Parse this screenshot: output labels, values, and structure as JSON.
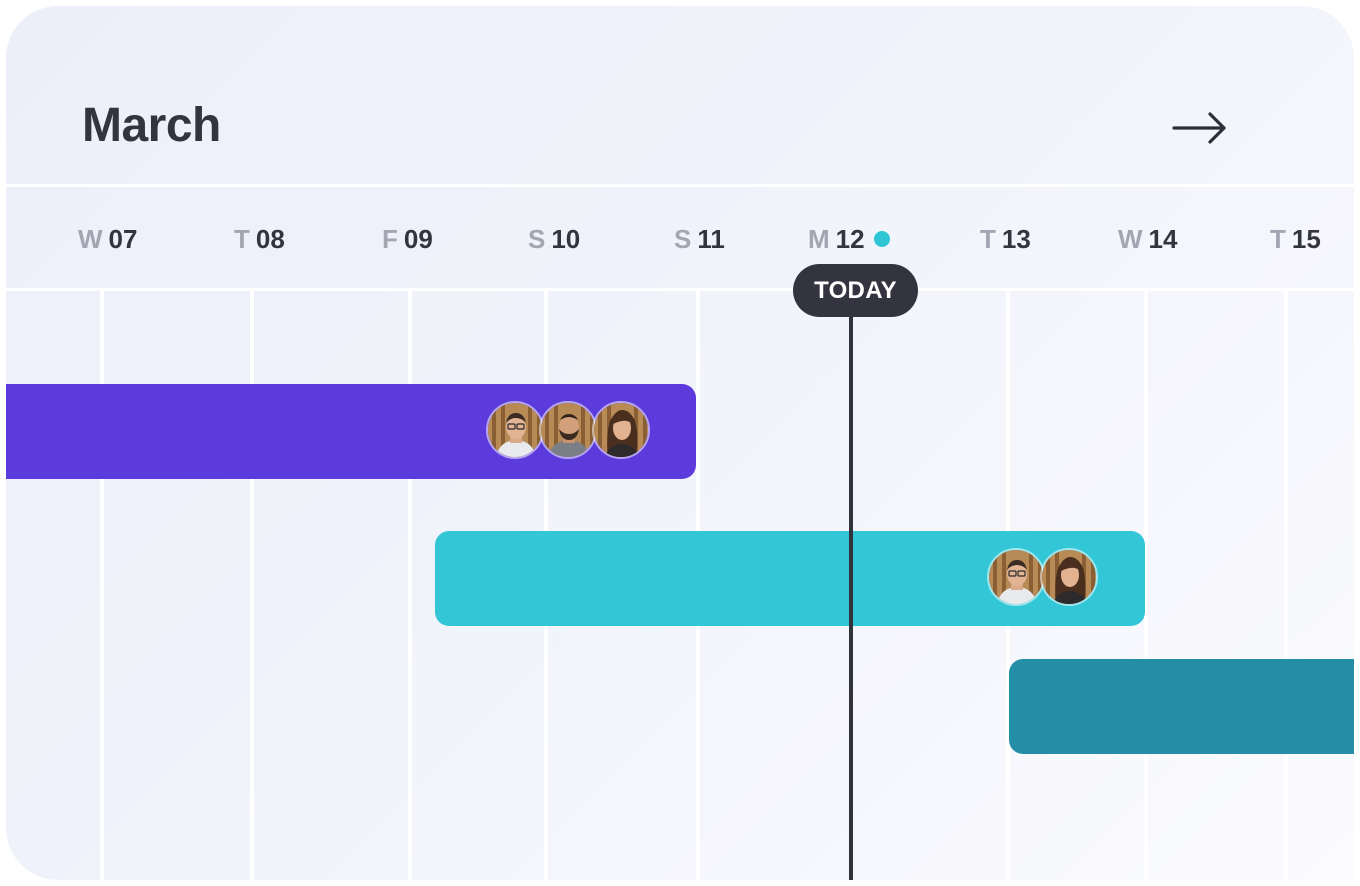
{
  "header": {
    "title": "March",
    "next_icon": "arrow-right-icon"
  },
  "days": [
    {
      "weekday": "W",
      "date": "07"
    },
    {
      "weekday": "T",
      "date": "08"
    },
    {
      "weekday": "F",
      "date": "09"
    },
    {
      "weekday": "S",
      "date": "10"
    },
    {
      "weekday": "S",
      "date": "11"
    },
    {
      "weekday": "M",
      "date": "12"
    },
    {
      "weekday": "T",
      "date": "13"
    },
    {
      "weekday": "W",
      "date": "14"
    },
    {
      "weekday": "T",
      "date": "15"
    }
  ],
  "today": {
    "label": "TODAY",
    "indicator_color": "#2ec5d4"
  },
  "tasks": [
    {
      "color": "#5b3bdc",
      "assignees": [
        "man-glasses",
        "man-beard",
        "woman-long-hair"
      ]
    },
    {
      "color": "#32c6d7",
      "assignees": [
        "man-glasses",
        "woman-long-hair"
      ]
    },
    {
      "color": "#238ea6",
      "assignees": []
    }
  ]
}
